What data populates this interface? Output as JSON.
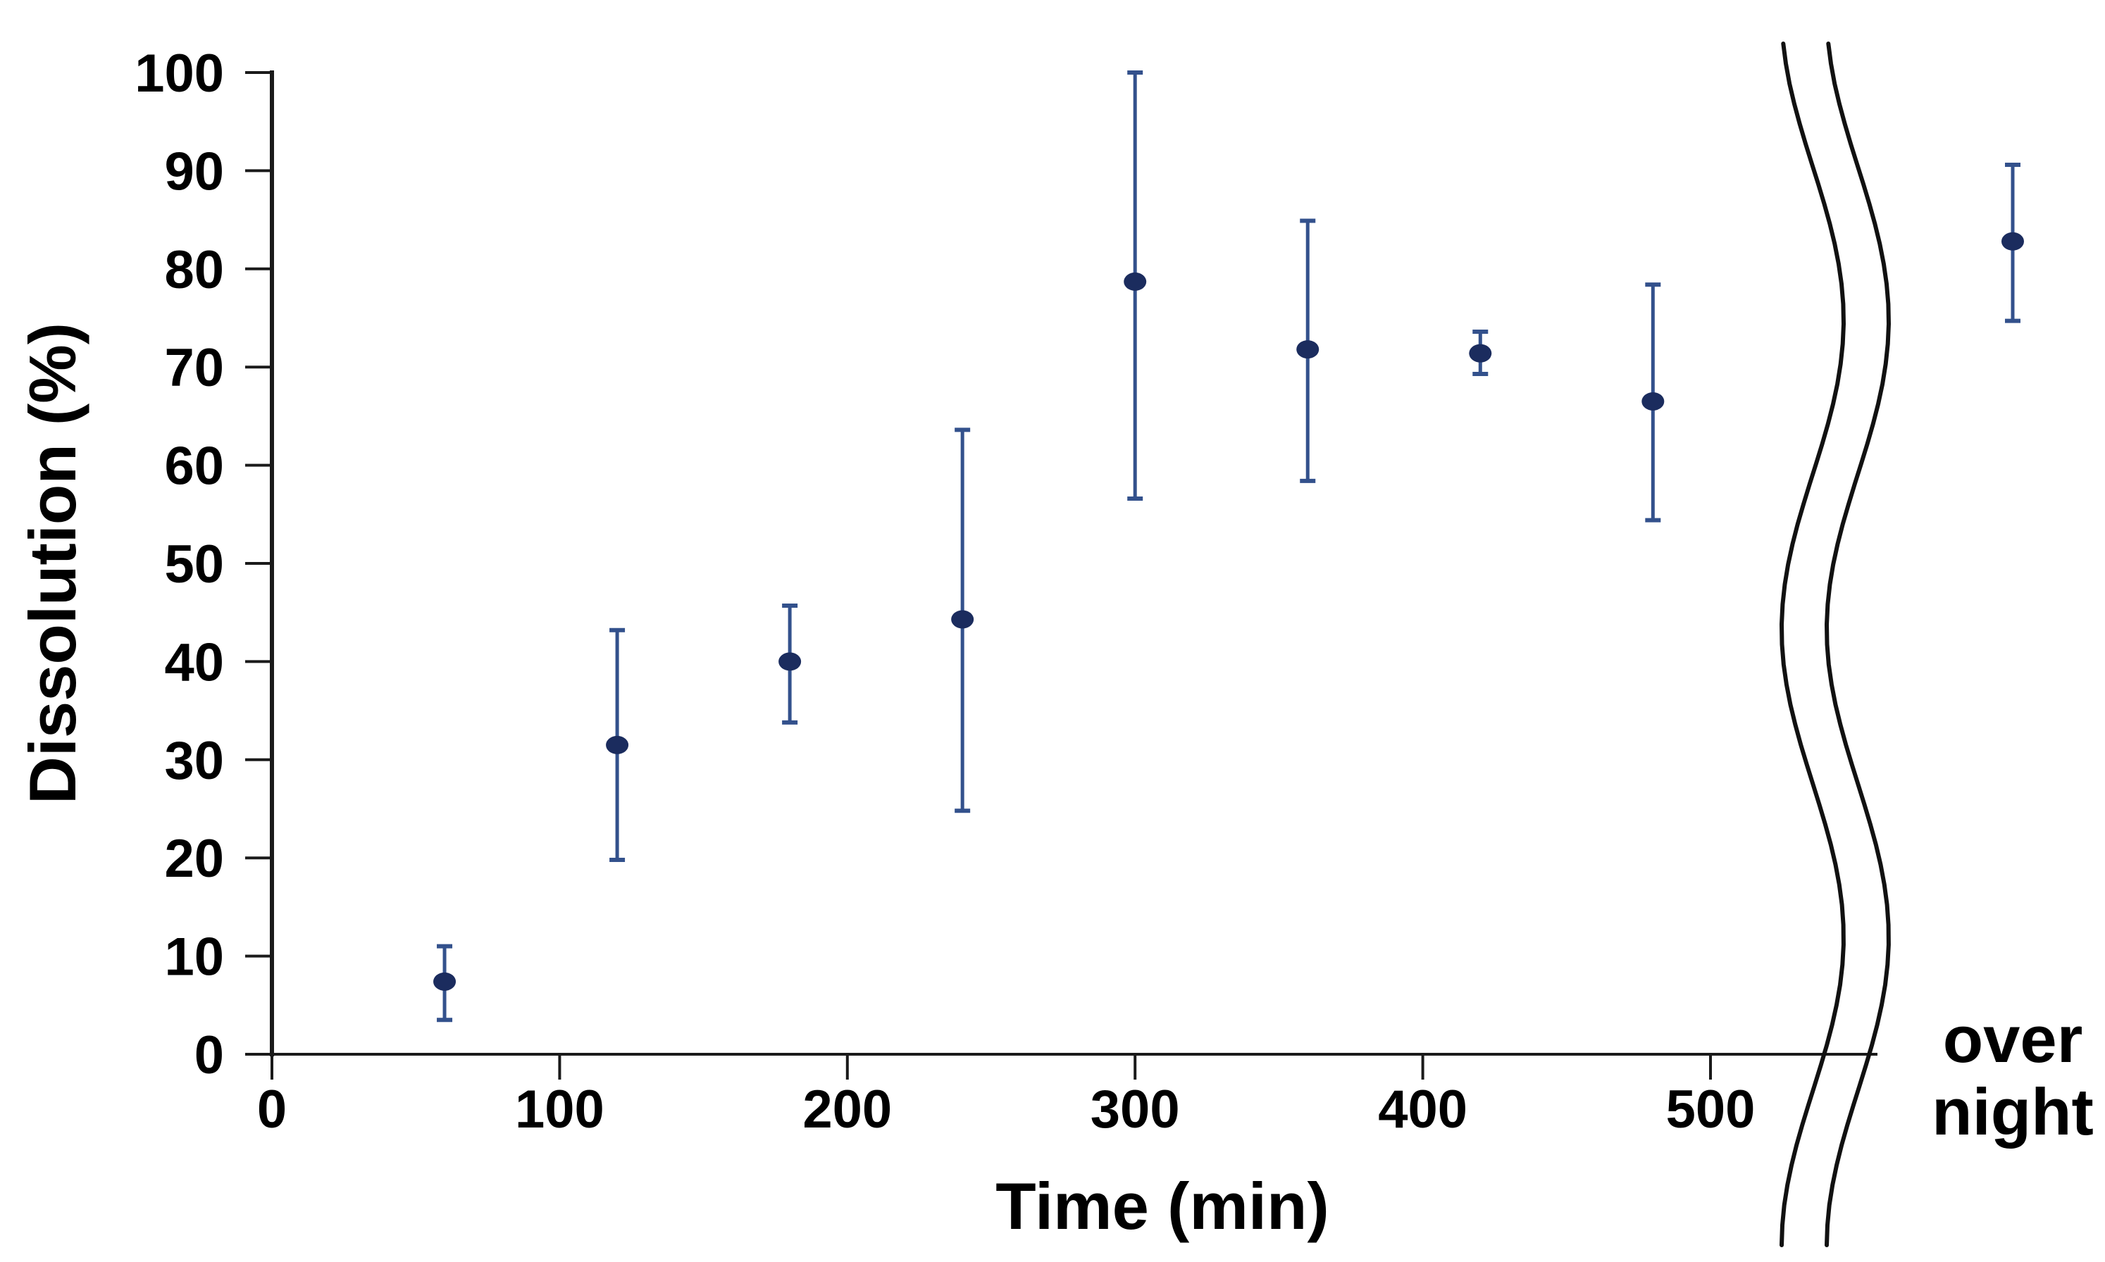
{
  "chart_data": {
    "type": "scatter",
    "title": "",
    "xlabel": "Time (min)",
    "ylabel": "Dissolution (%)",
    "x_ticks": [
      0,
      100,
      200,
      300,
      400,
      500
    ],
    "y_ticks": [
      0,
      10,
      20,
      30,
      40,
      50,
      60,
      70,
      80,
      90,
      100
    ],
    "xlim": [
      0,
      560
    ],
    "ylim": [
      0,
      100
    ],
    "grid": false,
    "legend": {
      "visible": false
    },
    "axis_break": {
      "present": true,
      "style": "double-wavy-line",
      "label_line1": "over",
      "label_line2": "night"
    },
    "series": [
      {
        "name": "dissolution",
        "marker": "filled-circle",
        "error_bars": "vertical-with-caps",
        "points": [
          {
            "t": 60,
            "y": 7.4,
            "err_low": 3.5,
            "err_high": 11.0
          },
          {
            "t": 120,
            "y": 31.5,
            "err_low": 19.8,
            "err_high": 43.2
          },
          {
            "t": 180,
            "y": 40.0,
            "err_low": 33.8,
            "err_high": 45.7
          },
          {
            "t": 240,
            "y": 44.3,
            "err_low": 24.8,
            "err_high": 63.6
          },
          {
            "t": 300,
            "y": 78.7,
            "err_low": 56.6,
            "err_high": 100.0
          },
          {
            "t": 360,
            "y": 71.8,
            "err_low": 58.4,
            "err_high": 84.9
          },
          {
            "t": 420,
            "y": 71.4,
            "err_low": 69.3,
            "err_high": 73.6
          },
          {
            "t": 480,
            "y": 66.5,
            "err_low": 54.4,
            "err_high": 78.4
          }
        ],
        "overnight_point": {
          "label": "over night",
          "y": 82.8,
          "err_low": 74.7,
          "err_high": 90.6
        }
      }
    ],
    "colors": {
      "marker": "#1b2c5e",
      "error_bar": "#33518c",
      "axis": "#1a1a1a",
      "break_line": "#111111",
      "text": "#000000",
      "background": "#ffffff"
    }
  }
}
